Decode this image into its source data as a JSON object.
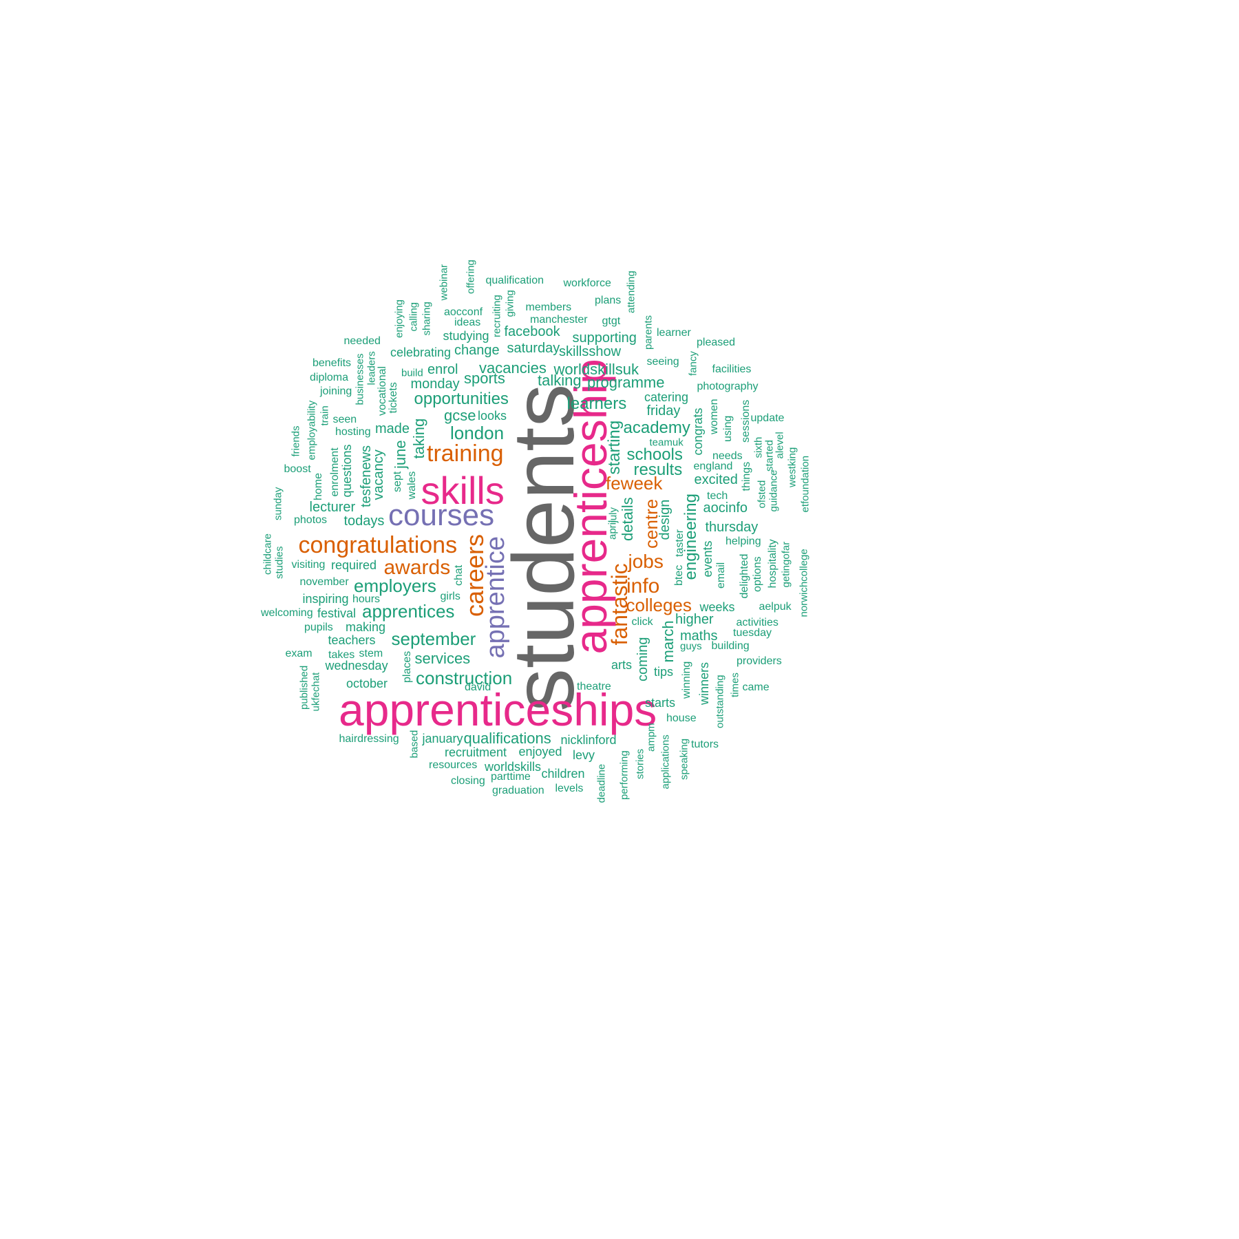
{
  "palette": {
    "background": "#ffffff",
    "gray": "#666666",
    "pink": "#e7298a",
    "purple": "#7570b3",
    "orange": "#d95f02",
    "green": "#1b9e77"
  },
  "words": [
    {
      "text": "students",
      "color": "gray"
    },
    {
      "text": "apprenticeships",
      "color": "pink"
    },
    {
      "text": "apprenticeship",
      "color": "pink"
    },
    {
      "text": "skills",
      "color": "pink"
    },
    {
      "text": "courses",
      "color": "purple"
    },
    {
      "text": "apprentice",
      "color": "purple"
    },
    {
      "text": "careers",
      "color": "orange"
    },
    {
      "text": "congratulations",
      "color": "orange"
    },
    {
      "text": "training",
      "color": "orange"
    },
    {
      "text": "fantastic",
      "color": "orange"
    },
    {
      "text": "awards",
      "color": "orange"
    },
    {
      "text": "info",
      "color": "orange"
    },
    {
      "text": "jobs",
      "color": "orange"
    },
    {
      "text": "colleges",
      "color": "orange"
    },
    {
      "text": "centre",
      "color": "orange"
    },
    {
      "text": "feweek",
      "color": "orange"
    },
    {
      "text": "employers",
      "color": "green"
    },
    {
      "text": "apprentices",
      "color": "green"
    },
    {
      "text": "september",
      "color": "green"
    },
    {
      "text": "construction",
      "color": "green"
    },
    {
      "text": "opportunities",
      "color": "green"
    },
    {
      "text": "london",
      "color": "green"
    },
    {
      "text": "schools",
      "color": "green"
    },
    {
      "text": "results",
      "color": "green"
    },
    {
      "text": "academy",
      "color": "green"
    },
    {
      "text": "learners",
      "color": "green"
    },
    {
      "text": "engineering",
      "color": "green"
    },
    {
      "text": "starting",
      "color": "green"
    },
    {
      "text": "services",
      "color": "green"
    },
    {
      "text": "qualifications",
      "color": "green"
    },
    {
      "text": "gcse",
      "color": "green"
    },
    {
      "text": "looks",
      "color": "green"
    },
    {
      "text": "vacancies",
      "color": "green"
    },
    {
      "text": "worldskillsuk",
      "color": "green"
    },
    {
      "text": "programme",
      "color": "green"
    },
    {
      "text": "talking",
      "color": "green"
    },
    {
      "text": "sports",
      "color": "green"
    },
    {
      "text": "monday",
      "color": "green"
    },
    {
      "text": "enrol",
      "color": "green"
    },
    {
      "text": "saturday",
      "color": "green"
    },
    {
      "text": "skillsshow",
      "color": "green"
    },
    {
      "text": "supporting",
      "color": "green"
    },
    {
      "text": "facebook",
      "color": "green"
    },
    {
      "text": "change",
      "color": "green"
    },
    {
      "text": "celebrating",
      "color": "green"
    },
    {
      "text": "studying",
      "color": "green"
    },
    {
      "text": "ideas",
      "color": "green"
    },
    {
      "text": "aocconf",
      "color": "green"
    },
    {
      "text": "members",
      "color": "green"
    },
    {
      "text": "manchester",
      "color": "green"
    },
    {
      "text": "gtgt",
      "color": "green"
    },
    {
      "text": "plans",
      "color": "green"
    },
    {
      "text": "workforce",
      "color": "green"
    },
    {
      "text": "qualification",
      "color": "green"
    },
    {
      "text": "offering",
      "color": "green"
    },
    {
      "text": "webinar",
      "color": "green"
    },
    {
      "text": "recruiting",
      "color": "green"
    },
    {
      "text": "giving",
      "color": "green"
    },
    {
      "text": "attending",
      "color": "green"
    },
    {
      "text": "sharing",
      "color": "green"
    },
    {
      "text": "calling",
      "color": "green"
    },
    {
      "text": "enjoying",
      "color": "green"
    },
    {
      "text": "needed",
      "color": "green"
    },
    {
      "text": "benefits",
      "color": "green"
    },
    {
      "text": "diploma",
      "color": "green"
    },
    {
      "text": "joining",
      "color": "green"
    },
    {
      "text": "businesses",
      "color": "green"
    },
    {
      "text": "leaders",
      "color": "green"
    },
    {
      "text": "vocational",
      "color": "green"
    },
    {
      "text": "tickets",
      "color": "green"
    },
    {
      "text": "build",
      "color": "green"
    },
    {
      "text": "train",
      "color": "green"
    },
    {
      "text": "seen",
      "color": "green"
    },
    {
      "text": "hosting",
      "color": "green"
    },
    {
      "text": "made",
      "color": "green"
    },
    {
      "text": "taking",
      "color": "green"
    },
    {
      "text": "june",
      "color": "green"
    },
    {
      "text": "sept",
      "color": "green"
    },
    {
      "text": "wales",
      "color": "green"
    },
    {
      "text": "employability",
      "color": "green"
    },
    {
      "text": "friends",
      "color": "green"
    },
    {
      "text": "boost",
      "color": "green"
    },
    {
      "text": "enrolment",
      "color": "green"
    },
    {
      "text": "questions",
      "color": "green"
    },
    {
      "text": "tesfenews",
      "color": "green"
    },
    {
      "text": "vacancy",
      "color": "green"
    },
    {
      "text": "home",
      "color": "green"
    },
    {
      "text": "sunday",
      "color": "green"
    },
    {
      "text": "lecturer",
      "color": "green"
    },
    {
      "text": "todays",
      "color": "green"
    },
    {
      "text": "photos",
      "color": "green"
    },
    {
      "text": "childcare",
      "color": "green"
    },
    {
      "text": "studies",
      "color": "green"
    },
    {
      "text": "visiting",
      "color": "green"
    },
    {
      "text": "required",
      "color": "green"
    },
    {
      "text": "november",
      "color": "green"
    },
    {
      "text": "chat",
      "color": "green"
    },
    {
      "text": "inspiring",
      "color": "green"
    },
    {
      "text": "hours",
      "color": "green"
    },
    {
      "text": "girls",
      "color": "green"
    },
    {
      "text": "welcoming",
      "color": "green"
    },
    {
      "text": "festival",
      "color": "green"
    },
    {
      "text": "pupils",
      "color": "green"
    },
    {
      "text": "making",
      "color": "green"
    },
    {
      "text": "teachers",
      "color": "green"
    },
    {
      "text": "exam",
      "color": "green"
    },
    {
      "text": "takes",
      "color": "green"
    },
    {
      "text": "stem",
      "color": "green"
    },
    {
      "text": "wednesday",
      "color": "green"
    },
    {
      "text": "places",
      "color": "green"
    },
    {
      "text": "published",
      "color": "green"
    },
    {
      "text": "ukfechat",
      "color": "green"
    },
    {
      "text": "october",
      "color": "green"
    },
    {
      "text": "david",
      "color": "green"
    },
    {
      "text": "hairdressing",
      "color": "green"
    },
    {
      "text": "based",
      "color": "green"
    },
    {
      "text": "january",
      "color": "green"
    },
    {
      "text": "recruitment",
      "color": "green"
    },
    {
      "text": "enjoyed",
      "color": "green"
    },
    {
      "text": "resources",
      "color": "green"
    },
    {
      "text": "worldskills",
      "color": "green"
    },
    {
      "text": "closing",
      "color": "green"
    },
    {
      "text": "parttime",
      "color": "green"
    },
    {
      "text": "children",
      "color": "green"
    },
    {
      "text": "graduation",
      "color": "green"
    },
    {
      "text": "levels",
      "color": "green"
    },
    {
      "text": "nicklinford",
      "color": "green"
    },
    {
      "text": "levy",
      "color": "green"
    },
    {
      "text": "deadline",
      "color": "green"
    },
    {
      "text": "performing",
      "color": "green"
    },
    {
      "text": "stories",
      "color": "green"
    },
    {
      "text": "ampm",
      "color": "green"
    },
    {
      "text": "applications",
      "color": "green"
    },
    {
      "text": "speaking",
      "color": "green"
    },
    {
      "text": "theatre",
      "color": "green"
    },
    {
      "text": "arts",
      "color": "green"
    },
    {
      "text": "coming",
      "color": "green"
    },
    {
      "text": "tips",
      "color": "green"
    },
    {
      "text": "starts",
      "color": "green"
    },
    {
      "text": "house",
      "color": "green"
    },
    {
      "text": "tutors",
      "color": "green"
    },
    {
      "text": "winning",
      "color": "green"
    },
    {
      "text": "winners",
      "color": "green"
    },
    {
      "text": "outstanding",
      "color": "green"
    },
    {
      "text": "times",
      "color": "green"
    },
    {
      "text": "came",
      "color": "green"
    },
    {
      "text": "providers",
      "color": "green"
    },
    {
      "text": "building",
      "color": "green"
    },
    {
      "text": "tuesday",
      "color": "green"
    },
    {
      "text": "activities",
      "color": "green"
    },
    {
      "text": "aelpuk",
      "color": "green"
    },
    {
      "text": "weeks",
      "color": "green"
    },
    {
      "text": "higher",
      "color": "green"
    },
    {
      "text": "maths",
      "color": "green"
    },
    {
      "text": "guys",
      "color": "green"
    },
    {
      "text": "march",
      "color": "green"
    },
    {
      "text": "click",
      "color": "green"
    },
    {
      "text": "details",
      "color": "green"
    },
    {
      "text": "design",
      "color": "green"
    },
    {
      "text": "april",
      "color": "green"
    },
    {
      "text": "july",
      "color": "green"
    },
    {
      "text": "btec",
      "color": "green"
    },
    {
      "text": "taster",
      "color": "green"
    },
    {
      "text": "events",
      "color": "green"
    },
    {
      "text": "email",
      "color": "green"
    },
    {
      "text": "delighted",
      "color": "green"
    },
    {
      "text": "options",
      "color": "green"
    },
    {
      "text": "hospitality",
      "color": "green"
    },
    {
      "text": "getingofar",
      "color": "green"
    },
    {
      "text": "norwichcollege",
      "color": "green"
    },
    {
      "text": "thursday",
      "color": "green"
    },
    {
      "text": "helping",
      "color": "green"
    },
    {
      "text": "aocinfo",
      "color": "green"
    },
    {
      "text": "tech",
      "color": "green"
    },
    {
      "text": "excited",
      "color": "green"
    },
    {
      "text": "england",
      "color": "green"
    },
    {
      "text": "needs",
      "color": "green"
    },
    {
      "text": "things",
      "color": "green"
    },
    {
      "text": "ofsted",
      "color": "green"
    },
    {
      "text": "guidance",
      "color": "green"
    },
    {
      "text": "started",
      "color": "green"
    },
    {
      "text": "sixth",
      "color": "green"
    },
    {
      "text": "alevel",
      "color": "green"
    },
    {
      "text": "westking",
      "color": "green"
    },
    {
      "text": "etfoundation",
      "color": "green"
    },
    {
      "text": "update",
      "color": "green"
    },
    {
      "text": "sessions",
      "color": "green"
    },
    {
      "text": "using",
      "color": "green"
    },
    {
      "text": "women",
      "color": "green"
    },
    {
      "text": "congrats",
      "color": "green"
    },
    {
      "text": "teamuk",
      "color": "green"
    },
    {
      "text": "friday",
      "color": "green"
    },
    {
      "text": "catering",
      "color": "green"
    },
    {
      "text": "photography",
      "color": "green"
    },
    {
      "text": "facilities",
      "color": "green"
    },
    {
      "text": "fancy",
      "color": "green"
    },
    {
      "text": "seeing",
      "color": "green"
    },
    {
      "text": "pleased",
      "color": "green"
    },
    {
      "text": "learner",
      "color": "green"
    },
    {
      "text": "parents",
      "color": "green"
    }
  ]
}
